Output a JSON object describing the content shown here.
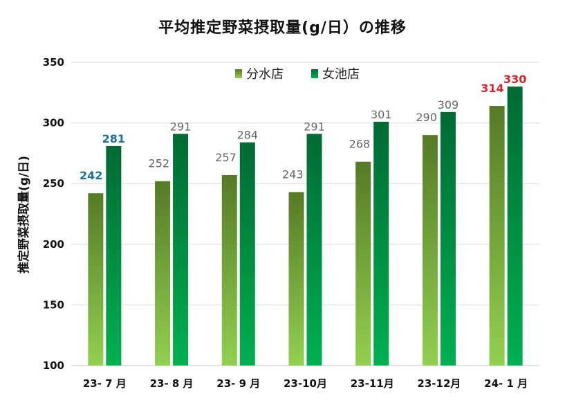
{
  "chart_data": {
    "type": "bar",
    "title": "平均推定野菜摂取量(g/日）の推移",
    "ylabel": "推定野菜摂取量(g/日)",
    "xlabel": "",
    "ylim": [
      100,
      350
    ],
    "yticks": [
      100,
      150,
      200,
      250,
      300,
      350
    ],
    "categories": [
      "23- 7 月",
      "23- 8 月",
      "23- 9 月",
      "23-10月",
      "23-11月",
      "23-12月",
      "24- 1 月"
    ],
    "series": [
      {
        "name": "分水店",
        "values": [
          242,
          252,
          257,
          243,
          268,
          290,
          314
        ]
      },
      {
        "name": "女池店",
        "values": [
          281,
          291,
          284,
          291,
          301,
          309,
          330
        ]
      }
    ],
    "legend": "top-center",
    "grid": true,
    "label_colors": {
      "分水店": [
        "#1f6f9f",
        "#666666",
        "#666666",
        "#666666",
        "#666666",
        "#666666",
        "#d9262b"
      ],
      "女池店": [
        "#1f6f9f",
        "#666666",
        "#666666",
        "#666666",
        "#666666",
        "#666666",
        "#d9262b"
      ]
    },
    "label_bold": {
      "分水店": [
        true,
        false,
        false,
        false,
        false,
        false,
        true
      ],
      "女池店": [
        true,
        false,
        false,
        false,
        false,
        false,
        true
      ]
    },
    "colors": {
      "series1_top": "#567a26",
      "series1_bottom": "#92d050",
      "series2_top": "#006a33",
      "series2_bottom": "#00b050",
      "grid": "#d9d9d9",
      "axis": "#bfbfbf"
    }
  }
}
